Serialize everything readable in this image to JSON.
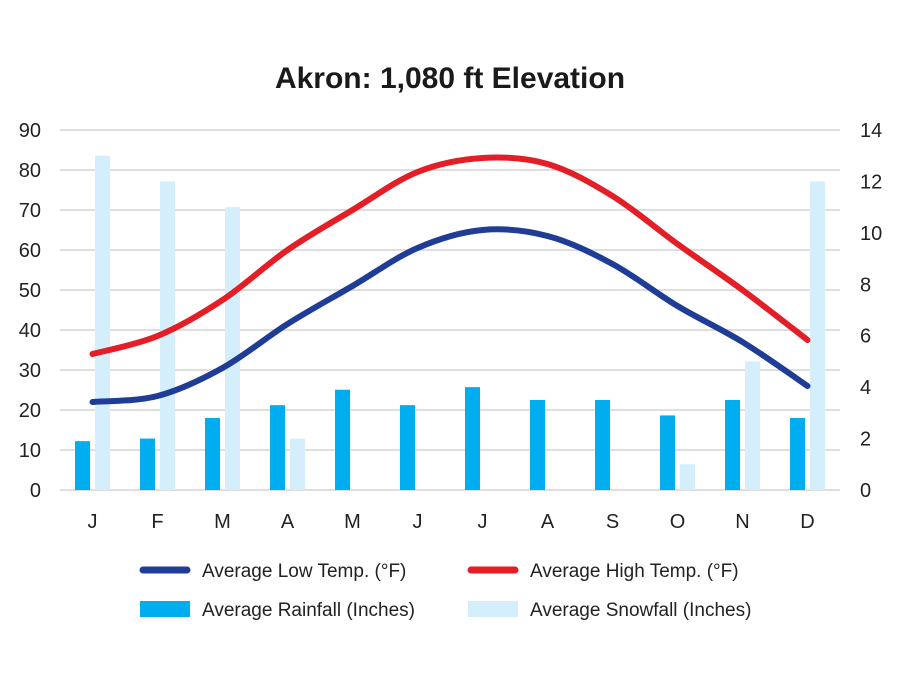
{
  "colors": {
    "low": "#1f3c96",
    "high": "#e41e26",
    "rain": "#00aeef",
    "snow": "#d4eefb",
    "grid": "#d4d4d4"
  },
  "chart_data": {
    "type": "bar",
    "title": "Akron: 1,080 ft Elevation",
    "categories": [
      "J",
      "F",
      "M",
      "A",
      "M",
      "J",
      "J",
      "A",
      "S",
      "O",
      "N",
      "D"
    ],
    "y_left": {
      "min": 0,
      "max": 90,
      "ticks": [
        "0",
        "10",
        "20",
        "30",
        "40",
        "50",
        "60",
        "70",
        "80",
        "90"
      ]
    },
    "y_right": {
      "min": 0,
      "max": 14,
      "ticks": [
        "0",
        "2",
        "4",
        "6",
        "8",
        "10",
        "12",
        "14"
      ]
    },
    "grid": true,
    "legend_position": "bottom",
    "series": [
      {
        "name": "Average Low Temp. (°F)",
        "kind": "line",
        "axis": "left",
        "color_key": "low",
        "values": [
          22,
          23.5,
          30.5,
          41.5,
          51,
          60.5,
          65,
          63.5,
          56.5,
          46,
          37,
          26
        ]
      },
      {
        "name": "Average High Temp. (°F)",
        "kind": "line",
        "axis": "left",
        "color_key": "high",
        "values": [
          34,
          38.5,
          47.5,
          60,
          70,
          79.5,
          83,
          81.5,
          73.5,
          61.5,
          50,
          37.5
        ]
      },
      {
        "name": "Average Rainfall (Inches)",
        "kind": "bar",
        "axis": "right",
        "color_key": "rain",
        "values": [
          1.9,
          2.0,
          2.8,
          3.3,
          3.9,
          3.3,
          4.0,
          3.5,
          3.5,
          2.9,
          3.5,
          2.8
        ]
      },
      {
        "name": "Average Snowfall (Inches)",
        "kind": "bar",
        "axis": "right",
        "color_key": "snow",
        "values": [
          13.0,
          12.0,
          11.0,
          2.0,
          0,
          0,
          0,
          0,
          0,
          1.0,
          5.0,
          12.0
        ]
      }
    ]
  }
}
